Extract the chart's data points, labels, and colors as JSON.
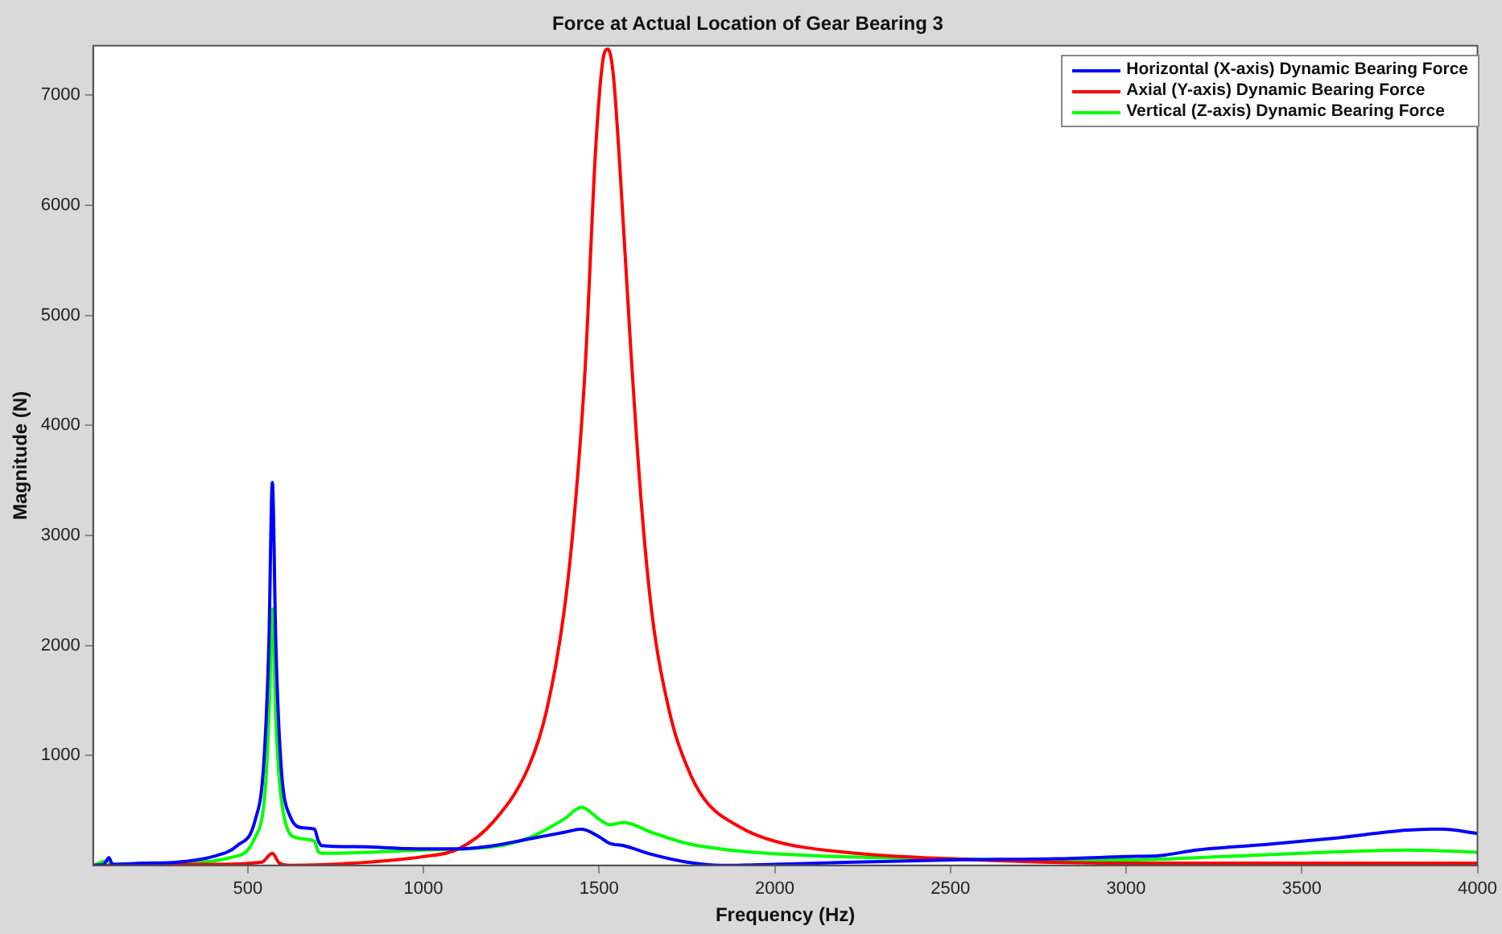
{
  "chart_data": {
    "type": "line",
    "title": "Force at Actual Location of Gear Bearing 3",
    "xlabel": "Frequency (Hz)",
    "ylabel": "Magnitude (N)",
    "xlim": [
      60,
      4000
    ],
    "xticks": [
      500,
      1000,
      1500,
      2000,
      2500,
      3000,
      3500,
      4000
    ],
    "ylim": [
      0,
      7450
    ],
    "yticks": [
      1000,
      2000,
      3000,
      4000,
      5000,
      6000,
      7000
    ],
    "grid": false,
    "legend": "top right",
    "marker": "none",
    "line_style": "solid",
    "series": [
      {
        "name": "Horizontal (X-axis) Dynamic Bearing Force",
        "color": "#0000ff",
        "x": [
          60,
          90,
          105,
          115,
          200,
          300,
          400,
          470,
          520,
          545,
          560,
          570,
          580,
          595,
          620,
          660,
          690,
          700,
          710,
          800,
          1000,
          1100,
          1200,
          1300,
          1400,
          1450,
          1500,
          1530,
          1570,
          1650,
          1750,
          1850,
          2000,
          2500,
          2800,
          3000,
          3100,
          3200,
          3400,
          3600,
          3800,
          3900,
          4000
        ],
        "values": [
          0,
          10,
          70,
          10,
          20,
          30,
          80,
          180,
          400,
          900,
          2000,
          3480,
          2000,
          900,
          450,
          340,
          330,
          230,
          180,
          170,
          150,
          150,
          180,
          240,
          300,
          330,
          260,
          200,
          180,
          100,
          30,
          0,
          10,
          50,
          60,
          80,
          90,
          140,
          190,
          250,
          320,
          330,
          290
        ]
      },
      {
        "name": "Axial (Y-axis) Dynamic Bearing Force",
        "color": "#ff0000",
        "x": [
          60,
          400,
          540,
          570,
          590,
          620,
          800,
          1000,
          1100,
          1200,
          1300,
          1350,
          1400,
          1430,
          1460,
          1490,
          1510,
          1525,
          1540,
          1560,
          1590,
          1620,
          1650,
          1700,
          1750,
          1800,
          1900,
          2000,
          2200,
          2500,
          3000,
          4000
        ],
        "values": [
          0,
          10,
          30,
          110,
          20,
          0,
          20,
          80,
          150,
          400,
          900,
          1400,
          2300,
          3200,
          4500,
          6500,
          7300,
          7420,
          7200,
          6300,
          4700,
          3300,
          2300,
          1400,
          900,
          600,
          350,
          220,
          120,
          60,
          20,
          20
        ]
      },
      {
        "name": "Vertical (Z-axis) Dynamic Bearing Force",
        "color": "#00ff00",
        "x": [
          60,
          100,
          115,
          300,
          450,
          520,
          550,
          562,
          570,
          580,
          600,
          640,
          690,
          700,
          710,
          1000,
          1200,
          1300,
          1400,
          1450,
          1500,
          1530,
          1570,
          1650,
          1750,
          1900,
          2100,
          2500,
          2700,
          3000,
          3200,
          3500,
          3800,
          4000
        ],
        "values": [
          0,
          40,
          10,
          20,
          70,
          250,
          700,
          1500,
          2330,
          1300,
          500,
          250,
          220,
          130,
          110,
          140,
          170,
          250,
          420,
          530,
          420,
          370,
          390,
          300,
          200,
          130,
          90,
          60,
          50,
          50,
          70,
          110,
          140,
          120
        ]
      }
    ]
  }
}
